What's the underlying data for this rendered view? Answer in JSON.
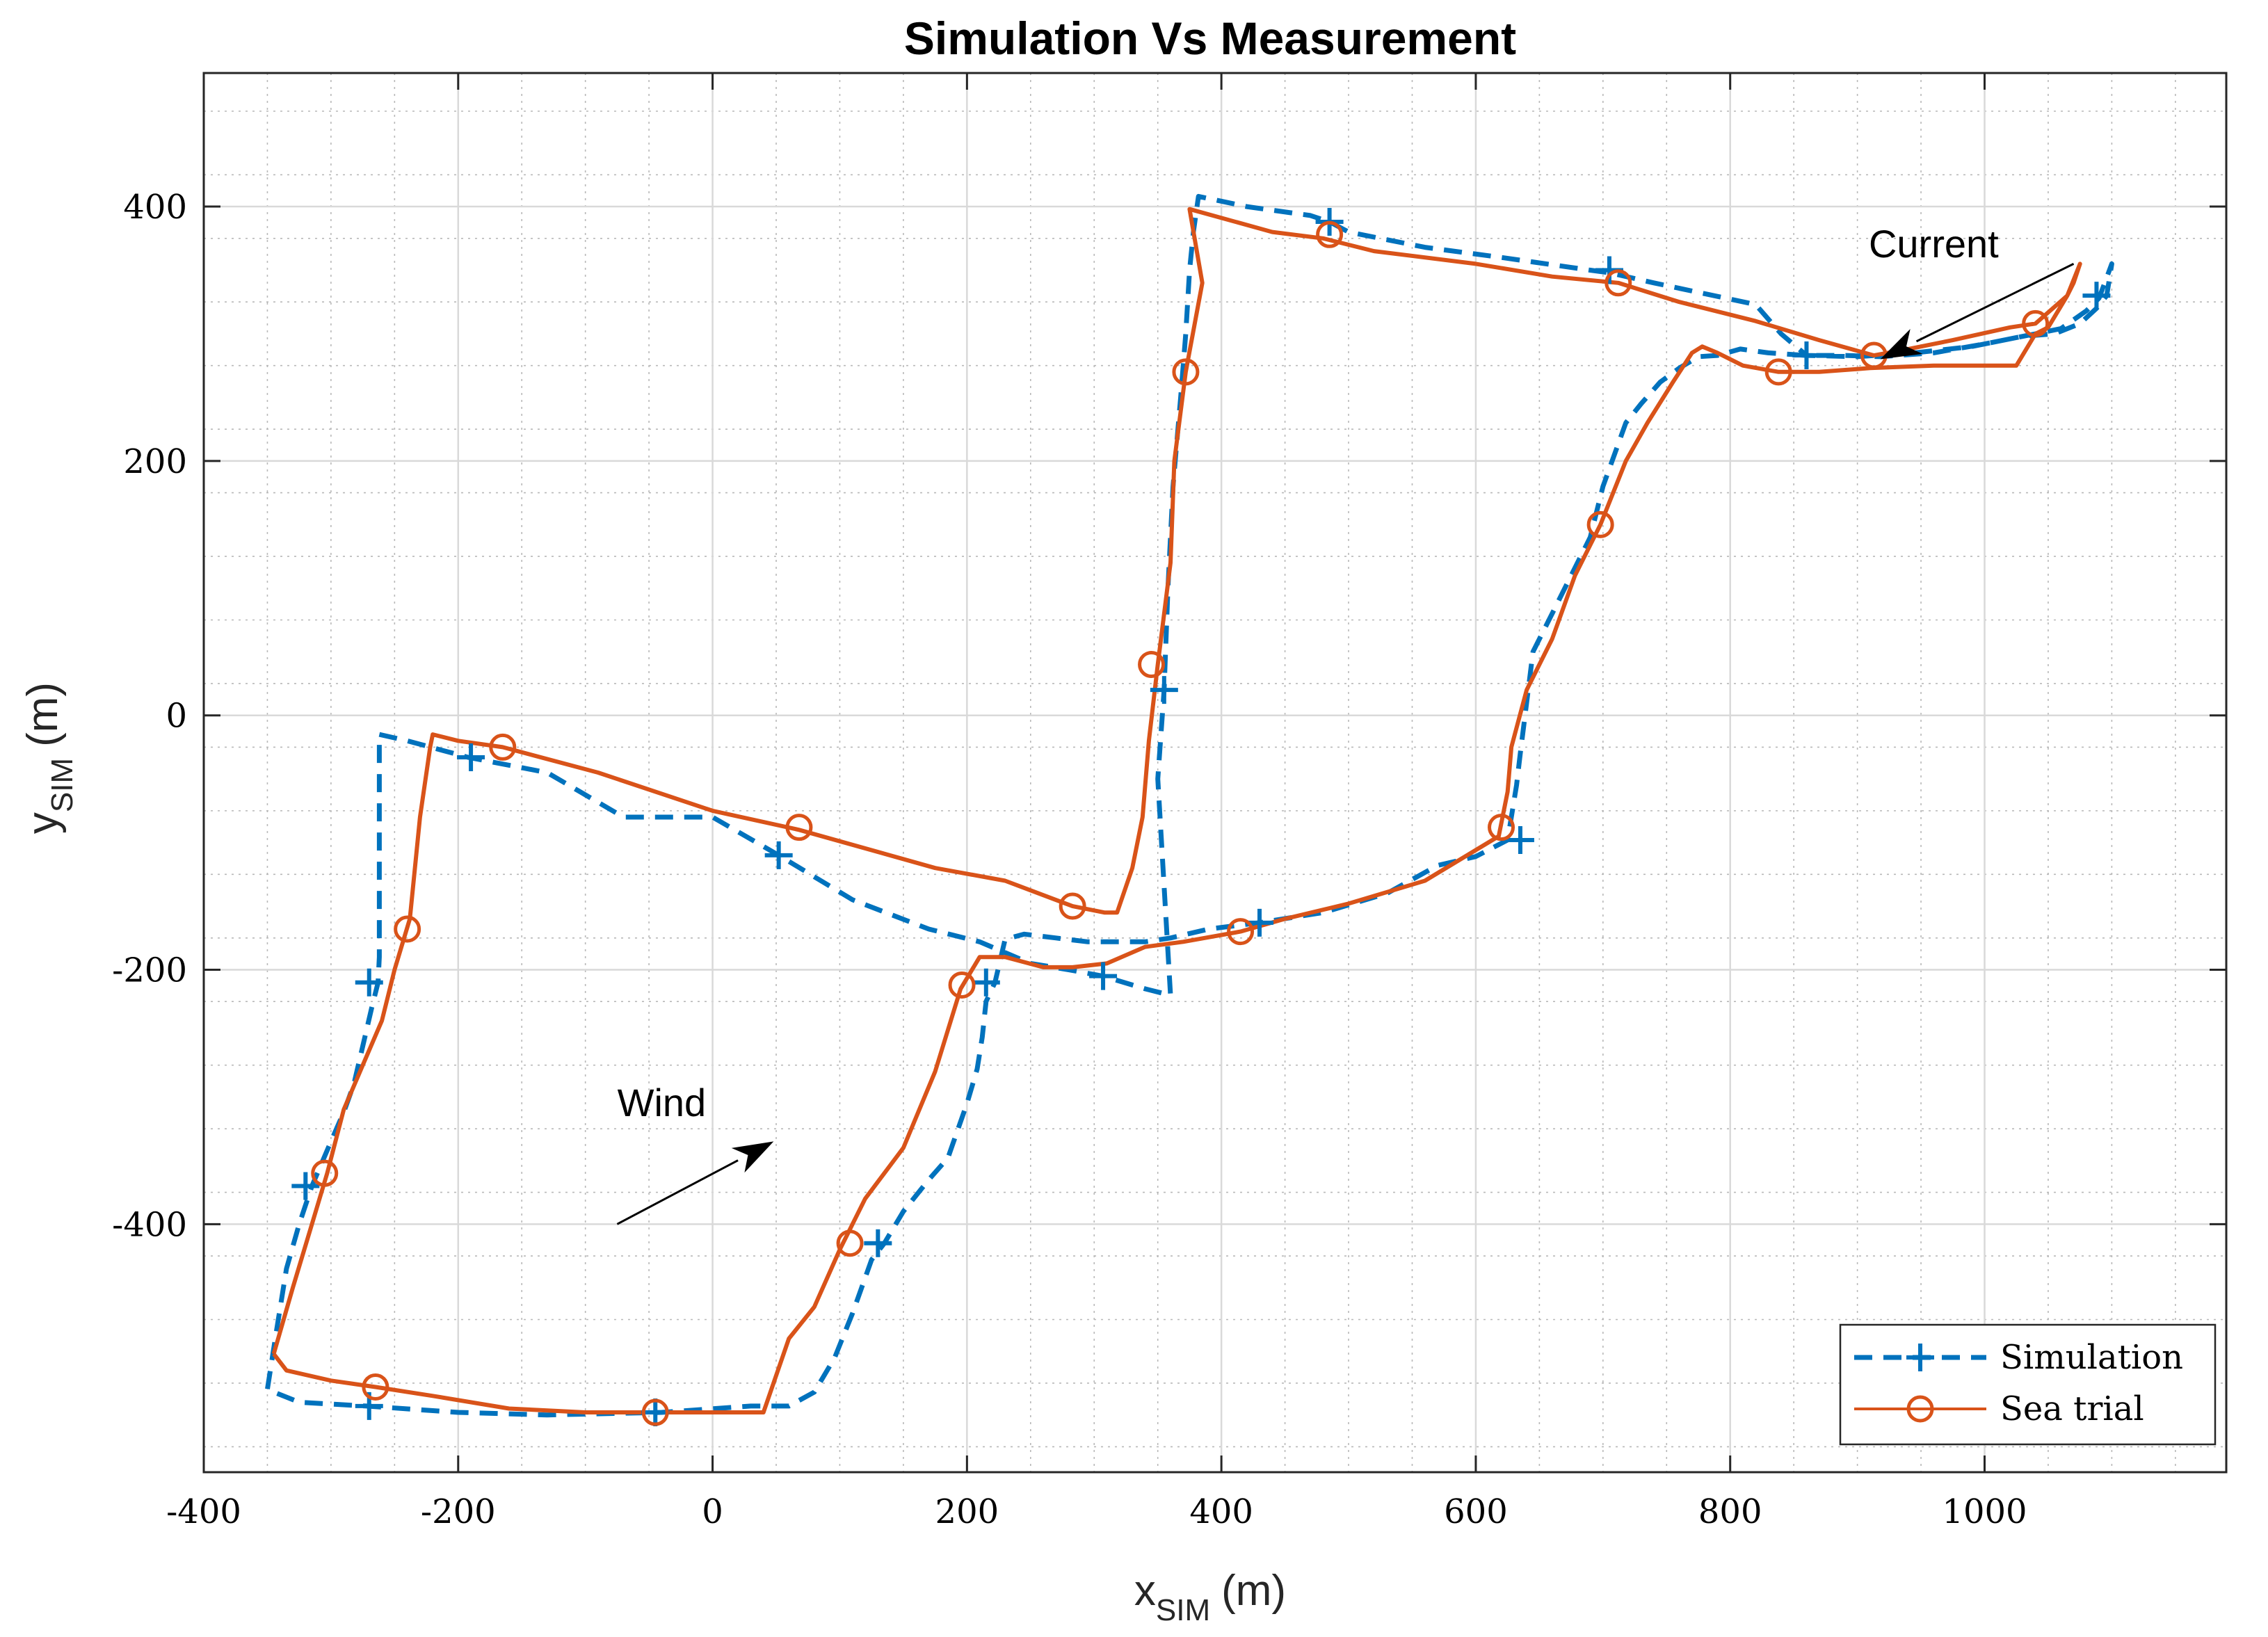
{
  "chart_data": {
    "type": "line",
    "title": "Simulation Vs Measurement",
    "xlabel": "x",
    "xlabel_sub": "SIM",
    "xlabel_unit": "(m)",
    "ylabel": "y",
    "ylabel_sub": "SIM",
    "ylabel_unit": "(m)",
    "xlim": [
      -400,
      1190
    ],
    "ylim": [
      -595,
      505
    ],
    "xticks": [
      -400,
      -200,
      0,
      200,
      400,
      600,
      800,
      1000
    ],
    "yticks": [
      -400,
      -200,
      0,
      200,
      400
    ],
    "xtick_labels": [
      "-400",
      "-200",
      "0",
      "200",
      "400",
      "600",
      "800",
      "1000"
    ],
    "ytick_labels": [
      "-400",
      "-200",
      "0",
      "200",
      "400"
    ],
    "grid": true,
    "minor_grid": true,
    "legend_position": "bottom-right",
    "series": [
      {
        "name": "Simulation",
        "color": "#0072BD",
        "line_style": "dashed",
        "marker": "plus",
        "x": [
          -262,
          -240,
          -192,
          -130,
          -70,
          0,
          52,
          110,
          170,
          210,
          250,
          280,
          307,
          340,
          360,
          350,
          355,
          358,
          362,
          368,
          372,
          375,
          378,
          382,
          420,
          470,
          485,
          500,
          560,
          620,
          690,
          705,
          740,
          820,
          840,
          860,
          900,
          945,
          990,
          1030,
          1055,
          1075,
          1088,
          1096,
          1100,
          1090,
          1080,
          1060,
          1040,
          1000,
          960,
          918,
          890,
          860,
          830,
          808,
          790,
          775,
          760,
          745,
          730,
          718,
          700,
          690,
          675,
          660,
          645,
          635,
          632,
          625,
          600,
          570,
          530,
          480,
          430,
          390,
          360,
          340,
          320,
          295,
          270,
          245,
          230,
          222,
          215,
          212,
          208,
          200,
          185,
          170,
          150,
          135,
          125,
          110,
          96,
          80,
          60,
          30,
          -40,
          -130,
          -200,
          -272,
          -325,
          -350,
          -343,
          -335,
          -325,
          -315,
          -300,
          -290,
          -282,
          -275,
          -268,
          -263,
          -262,
          -262
        ],
        "y": [
          -15,
          -20,
          -33,
          -45,
          -80,
          -80,
          -110,
          -145,
          -168,
          -178,
          -195,
          -200,
          -205,
          -215,
          -220,
          -50,
          20,
          100,
          180,
          250,
          300,
          350,
          380,
          408,
          400,
          393,
          388,
          380,
          368,
          360,
          350,
          348,
          340,
          323,
          300,
          283,
          282,
          285,
          290,
          298,
          300,
          308,
          320,
          330,
          355,
          328,
          318,
          304,
          300,
          292,
          285,
          282,
          283,
          283,
          285,
          288,
          283,
          282,
          273,
          262,
          245,
          230,
          180,
          140,
          110,
          80,
          50,
          -30,
          -55,
          -98,
          -111,
          -118,
          -140,
          -155,
          -163,
          -168,
          -175,
          -178,
          -178,
          -178,
          -175,
          -172,
          -176,
          -210,
          -225,
          -253,
          -278,
          -305,
          -348,
          -365,
          -390,
          -415,
          -428,
          -470,
          -505,
          -532,
          -543,
          -543,
          -548,
          -550,
          -548,
          -543,
          -540,
          -530,
          -485,
          -435,
          -400,
          -370,
          -335,
          -312,
          -290,
          -260,
          -230,
          -210,
          -190,
          -15
        ],
        "marker_x": [
          -190,
          52,
          307,
          355,
          485,
          705,
          860,
          1088,
          635,
          430,
          215,
          130,
          -45,
          -270,
          -320,
          -270
        ],
        "marker_y": [
          -33,
          -110,
          -205,
          20,
          388,
          350,
          283,
          330,
          -98,
          -163,
          -210,
          -415,
          -548,
          -543,
          -370,
          -210
        ]
      },
      {
        "name": "Sea trial",
        "color": "#D95319",
        "line_style": "solid",
        "marker": "circle",
        "x": [
          -345,
          -335,
          -300,
          -265,
          -220,
          -160,
          -100,
          -45,
          40,
          60,
          80,
          100,
          120,
          150,
          175,
          195,
          210,
          230,
          260,
          283,
          310,
          340,
          370,
          415,
          450,
          500,
          560,
          618,
          625,
          628,
          640,
          660,
          678,
          698,
          718,
          735,
          755,
          770,
          778,
          790,
          810,
          838,
          870,
          910,
          960,
          1000,
          1025,
          1040,
          1050,
          1065,
          1070,
          1075,
          1065,
          1040,
          1020,
          975,
          940,
          913,
          870,
          820,
          760,
          712,
          660,
          600,
          520,
          480,
          440,
          375,
          385,
          372,
          363,
          360,
          350,
          343,
          338,
          330,
          318,
          308,
          283,
          230,
          175,
          68,
          0,
          -90,
          -165,
          -200,
          -220,
          -222,
          -230,
          -238,
          -250,
          -260,
          -275,
          -290,
          -303,
          -315,
          -330,
          -345
        ],
        "y": [
          -502,
          -515,
          -523,
          -528,
          -535,
          -545,
          -548,
          -548,
          -548,
          -490,
          -465,
          -420,
          -380,
          -340,
          -280,
          -215,
          -190,
          -190,
          -198,
          -198,
          -195,
          -182,
          -178,
          -170,
          -160,
          -148,
          -130,
          -95,
          -60,
          -25,
          20,
          60,
          110,
          150,
          200,
          230,
          262,
          285,
          290,
          285,
          275,
          270,
          270,
          273,
          275,
          275,
          275,
          300,
          305,
          330,
          340,
          355,
          330,
          308,
          305,
          295,
          288,
          283,
          295,
          310,
          325,
          340,
          345,
          355,
          365,
          375,
          380,
          398,
          340,
          270,
          200,
          120,
          40,
          -20,
          -80,
          -120,
          -155,
          -155,
          -150,
          -130,
          -120,
          -90,
          -75,
          -45,
          -25,
          -20,
          -15,
          -25,
          -80,
          -160,
          -200,
          -240,
          -275,
          -310,
          -360,
          -400,
          -450,
          -502
        ],
        "marker_x": [
          -165,
          68,
          283,
          345,
          372,
          485,
          712,
          913,
          1040,
          838,
          698,
          620,
          415,
          196,
          108,
          -45,
          -265,
          -305,
          -240
        ],
        "marker_y": [
          -25,
          -88,
          -150,
          40,
          270,
          378,
          340,
          283,
          308,
          270,
          150,
          -88,
          -170,
          -212,
          -415,
          -548,
          -528,
          -360,
          -168
        ]
      }
    ],
    "annotations": [
      {
        "text": "Current",
        "label_x": 960,
        "label_y": 360,
        "arrow_from": [
          1070,
          355
        ],
        "arrow_to": [
          918,
          280
        ]
      },
      {
        "text": "Wind",
        "label_x": -40,
        "label_y": -315,
        "arrow_from": [
          -75,
          -400
        ],
        "arrow_to": [
          48,
          -335
        ]
      }
    ]
  }
}
